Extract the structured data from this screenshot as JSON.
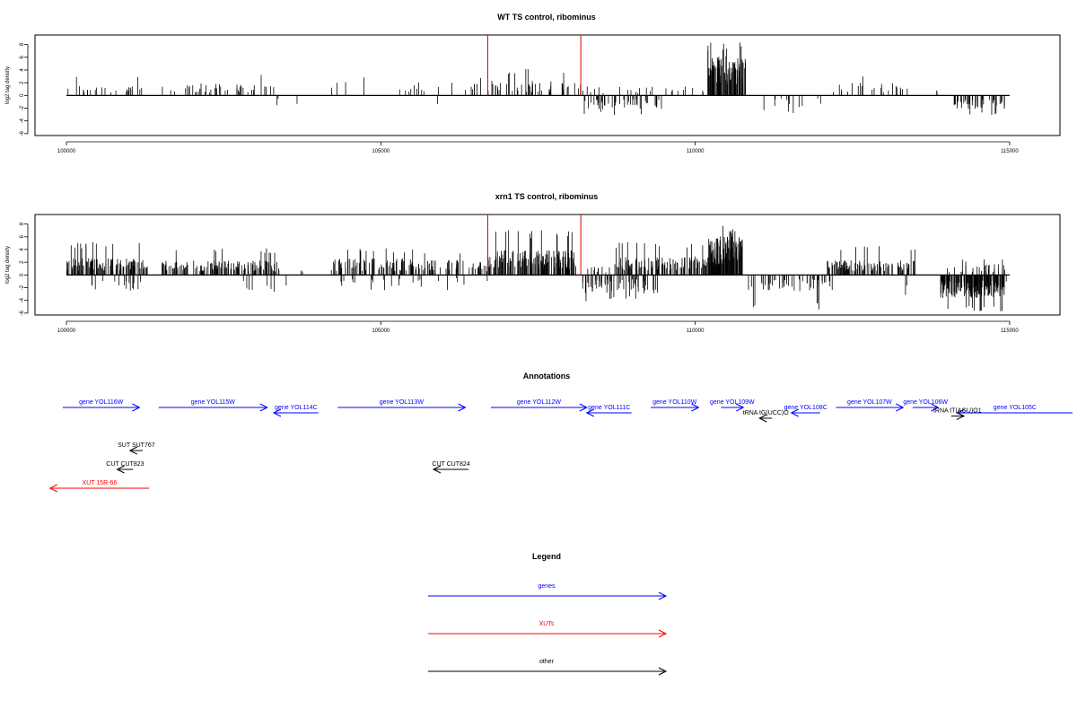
{
  "chart_data": [
    {
      "type": "bar",
      "title": "WT TS control, ribominus",
      "ylabel": "log2 tag density",
      "xlabel": "",
      "xlim": [
        99500,
        115800
      ],
      "ylim": [
        -6.3,
        9.5
      ],
      "x_ticks": [
        100000,
        105000,
        110000,
        115000
      ],
      "y_ticks": [
        8,
        6,
        4,
        2,
        0,
        -2,
        -4,
        -6
      ],
      "grid": false,
      "baseline_range": [
        100000,
        115000
      ],
      "highlight_lines": [
        {
          "x": 106700,
          "color": "#dd0000"
        },
        {
          "x": 108180,
          "color": "#dd0000"
        }
      ],
      "plus_segments": [
        {
          "start": 100000,
          "end": 101200,
          "mean": 1.1,
          "max": 3.4,
          "density": 0.022
        },
        {
          "start": 101500,
          "end": 103300,
          "mean": 1.3,
          "max": 3.5,
          "density": 0.024
        },
        {
          "start": 104200,
          "end": 104800,
          "mean": 1.5,
          "max": 3.2,
          "density": 0.006
        },
        {
          "start": 105000,
          "end": 105500,
          "mean": 0.9,
          "max": 1.6,
          "density": 0.008
        },
        {
          "start": 105500,
          "end": 106700,
          "mean": 1.5,
          "max": 3.2,
          "density": 0.012
        },
        {
          "start": 106700,
          "end": 108200,
          "mean": 1.6,
          "max": 4.2,
          "density": 0.03
        },
        {
          "start": 108200,
          "end": 110200,
          "mean": 1.0,
          "max": 2.2,
          "density": 0.012
        },
        {
          "start": 110200,
          "end": 110800,
          "mean": 4.3,
          "max": 8.5,
          "density": 0.16
        },
        {
          "start": 112100,
          "end": 113400,
          "mean": 1.4,
          "max": 3.2,
          "density": 0.018
        },
        {
          "start": 113800,
          "end": 113850,
          "mean": 0.8,
          "max": 1.2,
          "density": 0.04
        }
      ],
      "minus_segments": [
        {
          "start": 103300,
          "end": 103700,
          "mean": -1.3,
          "min": -2.0,
          "density": 0.008
        },
        {
          "start": 105900,
          "end": 105950,
          "mean": -2.8,
          "min": -3.2,
          "density": 0.02
        },
        {
          "start": 108200,
          "end": 109500,
          "mean": -1.5,
          "min": -3.2,
          "density": 0.035
        },
        {
          "start": 111000,
          "end": 112100,
          "mean": -1.3,
          "min": -2.8,
          "density": 0.012
        },
        {
          "start": 114100,
          "end": 114950,
          "mean": -1.5,
          "min": -3.3,
          "density": 0.05
        }
      ]
    },
    {
      "type": "bar",
      "title": "xrn1 TS control, ribominus",
      "ylabel": "log2 tag density",
      "xlabel": "",
      "xlim": [
        99500,
        115800
      ],
      "ylim": [
        -6.3,
        9.5
      ],
      "x_ticks": [
        100000,
        105000,
        110000,
        115000
      ],
      "y_ticks": [
        8,
        6,
        4,
        2,
        0,
        -2,
        -4,
        -6
      ],
      "grid": false,
      "baseline_range": [
        100000,
        115000
      ],
      "highlight_lines": [
        {
          "x": 106700,
          "color": "#dd0000"
        },
        {
          "x": 108180,
          "color": "#dd0000"
        }
      ],
      "plus_segments": [
        {
          "start": 100000,
          "end": 101300,
          "mean": 1.8,
          "max": 5.2,
          "density": 0.09
        },
        {
          "start": 101500,
          "end": 103400,
          "mean": 1.6,
          "max": 4.2,
          "density": 0.075
        },
        {
          "start": 103700,
          "end": 103800,
          "mean": 1.0,
          "max": 1.6,
          "density": 0.02
        },
        {
          "start": 104200,
          "end": 105700,
          "mean": 1.8,
          "max": 4.2,
          "density": 0.06
        },
        {
          "start": 105700,
          "end": 106700,
          "mean": 1.6,
          "max": 3.5,
          "density": 0.045
        },
        {
          "start": 106700,
          "end": 108100,
          "mean": 2.7,
          "max": 7.2,
          "density": 0.11
        },
        {
          "start": 108200,
          "end": 108700,
          "mean": 0.9,
          "max": 1.8,
          "density": 0.02
        },
        {
          "start": 108700,
          "end": 110200,
          "mean": 2.0,
          "max": 5.2,
          "density": 0.075
        },
        {
          "start": 110200,
          "end": 110750,
          "mean": 4.2,
          "max": 8.0,
          "density": 0.2
        },
        {
          "start": 112100,
          "end": 113500,
          "mean": 1.6,
          "max": 4.8,
          "density": 0.07
        },
        {
          "start": 114000,
          "end": 114950,
          "mean": 1.2,
          "max": 2.6,
          "density": 0.03
        }
      ],
      "minus_segments": [
        {
          "start": 100400,
          "end": 101200,
          "mean": -1.6,
          "min": -2.6,
          "density": 0.02
        },
        {
          "start": 102800,
          "end": 103500,
          "mean": -1.7,
          "min": -2.8,
          "density": 0.012
        },
        {
          "start": 104300,
          "end": 106700,
          "mean": -1.3,
          "min": -2.8,
          "density": 0.01
        },
        {
          "start": 108200,
          "end": 109400,
          "mean": -2.0,
          "min": -4.2,
          "density": 0.05
        },
        {
          "start": 110800,
          "end": 112200,
          "mean": -1.8,
          "min": -5.5,
          "density": 0.035
        },
        {
          "start": 113300,
          "end": 113400,
          "mean": -2.5,
          "min": -4.0,
          "density": 0.02
        },
        {
          "start": 113900,
          "end": 114950,
          "mean": -2.5,
          "min": -5.9,
          "density": 0.16
        }
      ]
    }
  ],
  "annotations": {
    "title": "Annotations",
    "items": [
      {
        "label": "gene YOL116W",
        "start": 100000,
        "end": 101200,
        "strand": "+",
        "row": 0,
        "color": "#0000ff"
      },
      {
        "label": "gene YOL115W",
        "start": 101500,
        "end": 103200,
        "strand": "+",
        "row": 0,
        "color": "#0000ff"
      },
      {
        "label": "gene YOL114C",
        "start": 103300,
        "end": 104000,
        "strand": "-",
        "row": 1,
        "color": "#0000ff"
      },
      {
        "label": "gene YOL113W",
        "start": 104300,
        "end": 106300,
        "strand": "+",
        "row": 0,
        "color": "#0000ff"
      },
      {
        "label": "gene YOL112W",
        "start": 106700,
        "end": 108200,
        "strand": "+",
        "row": 0,
        "color": "#0000ff"
      },
      {
        "label": "gene YOL111C",
        "start": 108200,
        "end": 108900,
        "strand": "-",
        "row": 1,
        "color": "#0000ff"
      },
      {
        "label": "gene YOL110W",
        "start": 109200,
        "end": 109950,
        "strand": "+",
        "row": 0,
        "color": "#0000ff"
      },
      {
        "label": "gene YOL109W",
        "start": 110300,
        "end": 110650,
        "strand": "+",
        "row": 0,
        "color": "#0000ff"
      },
      {
        "label": "gene YOL108C",
        "start": 111400,
        "end": 111850,
        "strand": "-",
        "row": 1,
        "color": "#0000ff"
      },
      {
        "label": "gene YOL107W",
        "start": 112100,
        "end": 113150,
        "strand": "+",
        "row": 0,
        "color": "#0000ff"
      },
      {
        "label": "gene YOL106W",
        "start": 113300,
        "end": 113700,
        "strand": "+",
        "row": 0,
        "color": "#0000ff"
      },
      {
        "label": "gene YOL105C",
        "start": 114000,
        "end": 115800,
        "strand": "-",
        "row": 1,
        "color": "#0000ff"
      },
      {
        "label": "tRNA tG(UCC)O",
        "start": 110950,
        "end": 111050,
        "strand": "-",
        "row": 2,
        "color": "#000000"
      },
      {
        "label": "tRNA tT(AGU)O1",
        "start": 113950,
        "end": 114050,
        "strand": "+",
        "row": 1.6,
        "color": "#000000"
      },
      {
        "label": "SUT SUT767",
        "start": 101050,
        "end": 101250,
        "strand": "-",
        "row": 3,
        "color": "#000000"
      },
      {
        "label": "CUT CUT823",
        "start": 100850,
        "end": 101100,
        "strand": "-",
        "row": 4,
        "color": "#000000"
      },
      {
        "label": "CUT CUT824",
        "start": 105800,
        "end": 106350,
        "strand": "-",
        "row": 4,
        "color": "#000000"
      },
      {
        "label": "XUT 15R-66",
        "start": 99800,
        "end": 101350,
        "strand": "-",
        "row": 5,
        "color": "#ff0000"
      }
    ]
  },
  "legend": {
    "title": "Legend",
    "items": [
      {
        "label": "genes",
        "color": "#0000ff"
      },
      {
        "label": "XUTs",
        "color": "#ff0000"
      },
      {
        "label": "other",
        "color": "#000000"
      }
    ]
  }
}
